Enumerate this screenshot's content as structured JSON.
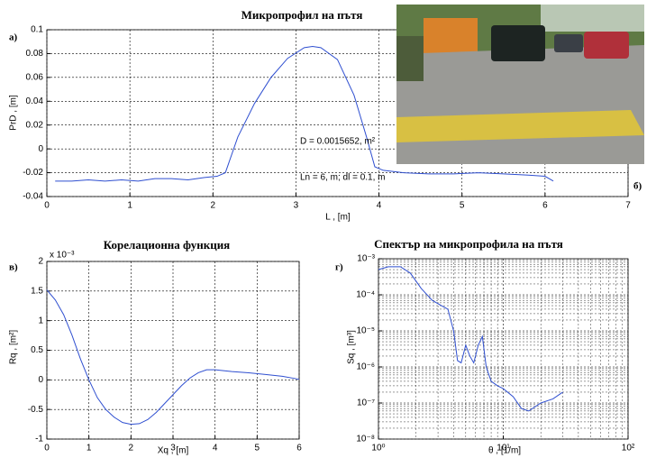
{
  "chart_data": [
    {
      "type": "line",
      "title": "Микропрофил на пътя",
      "panel_label": "а)",
      "xlabel": "L , [m]",
      "ylabel": "PrD , [m]",
      "color": "#2f4fd0",
      "x": [
        0.1,
        0.3,
        0.5,
        0.7,
        0.9,
        1.1,
        1.3,
        1.5,
        1.7,
        1.9,
        2.05,
        2.15,
        2.3,
        2.5,
        2.7,
        2.9,
        3.1,
        3.2,
        3.3,
        3.5,
        3.7,
        3.85,
        3.95,
        4.05,
        4.3,
        4.6,
        4.9,
        5.2,
        5.5,
        5.8,
        6.0,
        6.1
      ],
      "values": [
        -0.027,
        -0.027,
        -0.026,
        -0.027,
        -0.026,
        -0.027,
        -0.025,
        -0.025,
        -0.026,
        -0.024,
        -0.023,
        -0.02,
        0.01,
        0.038,
        0.06,
        0.076,
        0.085,
        0.086,
        0.085,
        0.075,
        0.045,
        0.01,
        -0.015,
        -0.018,
        -0.02,
        -0.021,
        -0.021,
        -0.02,
        -0.021,
        -0.022,
        -0.023,
        -0.027
      ],
      "xlim": [
        0,
        7
      ],
      "ylim": [
        -0.04,
        0.1
      ],
      "xticks": [
        0,
        1,
        2,
        3,
        4,
        5,
        6,
        7
      ],
      "yticks": [
        -0.04,
        -0.02,
        0,
        0.02,
        0.04,
        0.06,
        0.08,
        0.1
      ],
      "grid": true,
      "annotations": [
        "D = 0.0015652, m²",
        "Ln = 6, m; dl = 0.1, m"
      ]
    },
    {
      "type": "line",
      "title": "Корелационна функция",
      "panel_label": "в)",
      "xlabel": "Xq , [m]",
      "ylabel": "Rq , [m²]",
      "y_multiplier": "x 10⁻³",
      "color": "#2f4fd0",
      "x": [
        0,
        0.2,
        0.4,
        0.6,
        0.8,
        1.0,
        1.2,
        1.4,
        1.6,
        1.8,
        2.0,
        2.2,
        2.4,
        2.6,
        2.8,
        3.0,
        3.2,
        3.4,
        3.6,
        3.8,
        4.0,
        4.4,
        4.8,
        5.2,
        5.6,
        6.0
      ],
      "values": [
        1.52,
        1.35,
        1.1,
        0.75,
        0.35,
        0,
        -0.3,
        -0.5,
        -0.63,
        -0.72,
        -0.75,
        -0.74,
        -0.67,
        -0.55,
        -0.4,
        -0.25,
        -0.1,
        0.03,
        0.12,
        0.17,
        0.17,
        0.14,
        0.12,
        0.09,
        0.06,
        0.01
      ],
      "xlim": [
        0,
        6
      ],
      "ylim": [
        -1,
        2
      ],
      "xticks": [
        0,
        1,
        2,
        3,
        4,
        5,
        6
      ],
      "yticks": [
        -1,
        -0.5,
        0,
        0.5,
        1,
        1.5,
        2
      ],
      "grid": true
    },
    {
      "type": "line",
      "title": "Спектър на микропрофила на пътя",
      "panel_label": "г)",
      "xlabel": "θ , [1/m]",
      "ylabel": "Sq , [m³]",
      "color": "#2f4fd0",
      "log_x": true,
      "log_y": true,
      "minor_grid": true,
      "x": [
        1.0,
        1.2,
        1.5,
        1.8,
        2.2,
        2.7,
        3.2,
        3.6,
        4.0,
        4.3,
        4.6,
        5.0,
        5.4,
        5.8,
        6.3,
        6.8,
        7.3,
        8,
        9,
        10,
        12,
        14,
        16,
        20,
        25,
        30
      ],
      "values": [
        0.0005,
        0.0006,
        0.0006,
        0.0004,
        0.00015,
        7e-05,
        5e-05,
        4e-05,
        1e-05,
        1.5e-06,
        1.3e-06,
        4e-06,
        2e-06,
        1.3e-06,
        4e-06,
        7e-06,
        1e-06,
        4e-07,
        3e-07,
        2.5e-07,
        1.5e-07,
        7e-08,
        6e-08,
        1e-07,
        1.3e-07,
        2e-07
      ],
      "xlim": [
        1,
        100
      ],
      "ylim": [
        1e-08,
        0.001
      ],
      "xticks": [
        {
          "value": 1,
          "label": "10⁰"
        },
        {
          "value": 10,
          "label": "10¹"
        },
        {
          "value": 100,
          "label": "10²"
        }
      ],
      "yticks": [
        {
          "value": 1e-08,
          "label": "10⁻⁸"
        },
        {
          "value": 1e-07,
          "label": "10⁻⁷"
        },
        {
          "value": 1e-06,
          "label": "10⁻⁶"
        },
        {
          "value": 1e-05,
          "label": "10⁻⁵"
        },
        {
          "value": 0.0001,
          "label": "10⁻⁴"
        },
        {
          "value": 0.001,
          "label": "10⁻³"
        }
      ],
      "grid": true
    }
  ],
  "photo": {
    "label": "б)"
  }
}
